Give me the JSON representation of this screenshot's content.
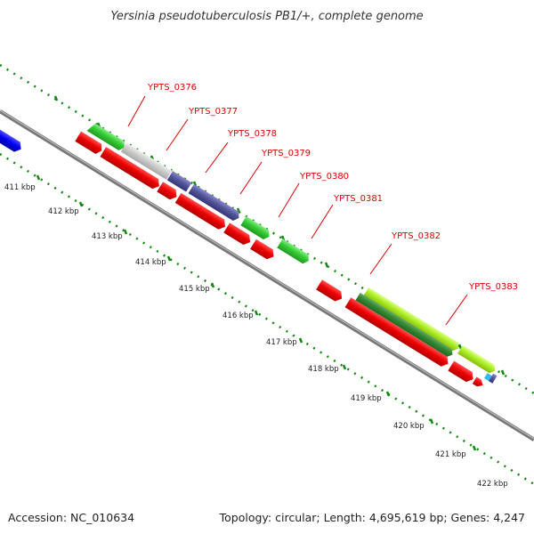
{
  "title": "Yersinia pseudotuberculosis PB1/+, complete genome",
  "footer": {
    "accession": "Accession: NC_010634",
    "summary": "Topology: circular; Length: 4,695,619 bp; Genes: 4,247"
  },
  "ticks": [
    "411 kbp",
    "412 kbp",
    "413 kbp",
    "414 kbp",
    "415 kbp",
    "416 kbp",
    "417 kbp",
    "418 kbp",
    "419 kbp",
    "420 kbp",
    "421 kbp",
    "422 kbp"
  ],
  "gene_labels": [
    "YPTS_0376",
    "YPTS_0377",
    "YPTS_0378",
    "YPTS_0379",
    "YPTS_0380",
    "YPTS_0381",
    "YPTS_0382",
    "YPTS_0383"
  ],
  "colors": {
    "backbone": "#888888",
    "tick_marks": "#118811",
    "label_lines": "#e00000",
    "cds_red": "#ee0000",
    "blue_feature": "#0000ee",
    "green_feature": "#33cc33",
    "gray_feature": "#c8c8c8",
    "purple_feature": "#555599",
    "lime_feature": "#aaee22",
    "dark_green_feature": "#338833"
  }
}
